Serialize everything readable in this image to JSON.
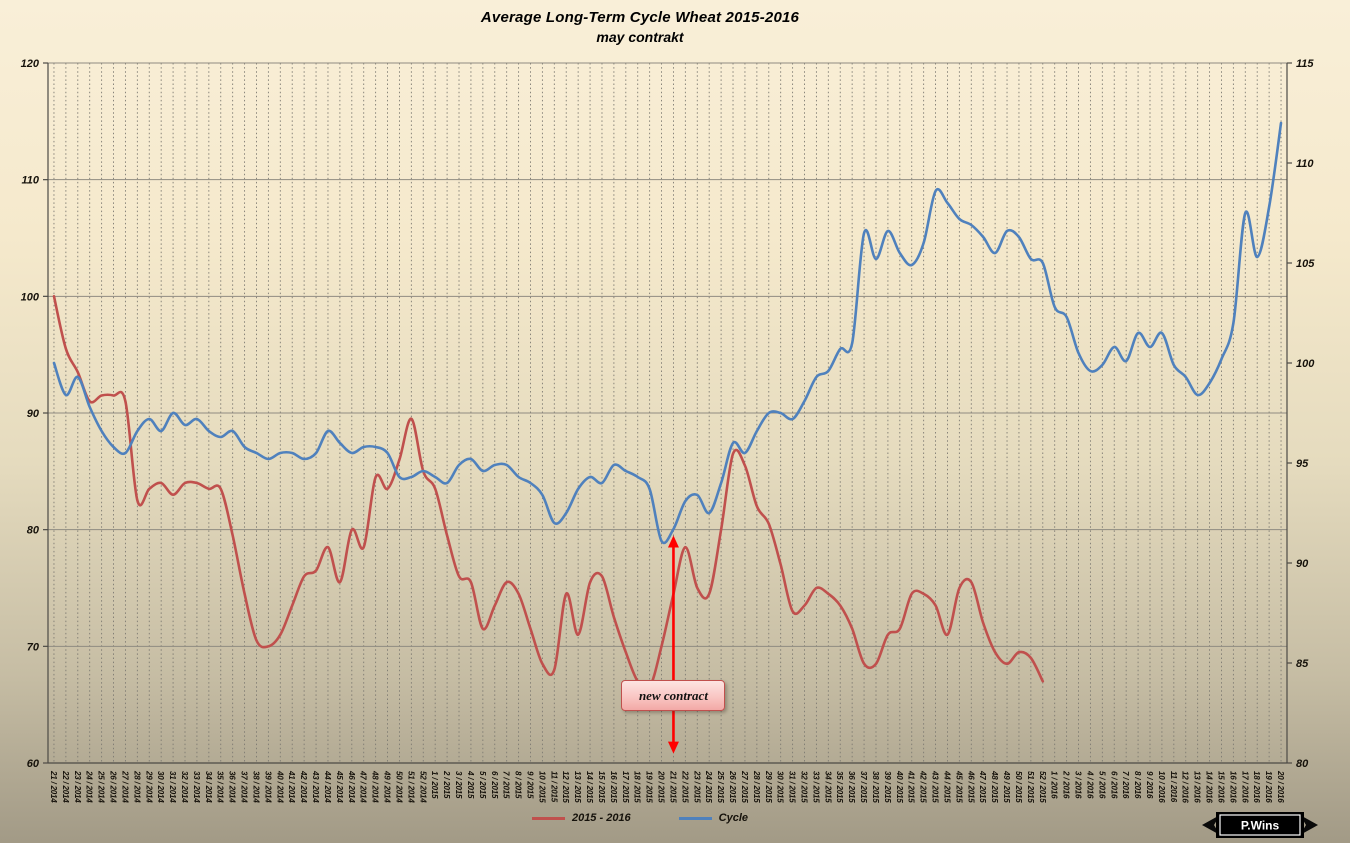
{
  "chart_data": {
    "type": "line",
    "title": "Average Long-Term Cycle Wheat 2015-2016",
    "subtitle": "may contrakt",
    "legend_position": "bottom-center",
    "grid": {
      "vertical": "dashed-per-category",
      "horizontal": "solid-per-left-tick"
    },
    "left_axis": {
      "min": 60,
      "max": 120,
      "ticks": [
        60,
        70,
        80,
        90,
        100,
        110,
        120
      ]
    },
    "right_axis": {
      "min": 80,
      "max": 115,
      "ticks": [
        80,
        85,
        90,
        95,
        100,
        105,
        110,
        115
      ]
    },
    "categories": [
      "21 / 2014",
      "22 / 2014",
      "23 / 2014",
      "24 / 2014",
      "25 / 2014",
      "26 / 2014",
      "27 / 2014",
      "28 / 2014",
      "29 / 2014",
      "30 / 2014",
      "31 / 2014",
      "32 / 2014",
      "33 / 2014",
      "34 / 2014",
      "35 / 2014",
      "36 / 2014",
      "37 / 2014",
      "38 / 2014",
      "39 / 2014",
      "40 / 2014",
      "41 / 2014",
      "42 / 2014",
      "43 / 2014",
      "44 / 2014",
      "45 / 2014",
      "46 / 2014",
      "47 / 2014",
      "48 / 2014",
      "49 / 2014",
      "50 / 2014",
      "51 / 2014",
      "52 / 2014",
      "1 / 2015",
      "2 / 2015",
      "3 / 2015",
      "4 / 2015",
      "5 / 2015",
      "6 / 2015",
      "7 / 2015",
      "8 / 2015",
      "9 / 2015",
      "10 / 2015",
      "11 / 2015",
      "12 / 2015",
      "13 / 2015",
      "14 / 2015",
      "15 / 2015",
      "16 / 2015",
      "17 / 2015",
      "18 / 2015",
      "19 / 2015",
      "20 / 2015",
      "21 / 2015",
      "22 / 2015",
      "23 / 2015",
      "24 / 2015",
      "25 / 2015",
      "26 / 2015",
      "27 / 2015",
      "28 / 2015",
      "29 / 2015",
      "30 / 2015",
      "31 / 2015",
      "32 / 2015",
      "33 / 2015",
      "34 / 2015",
      "35 / 2015",
      "36 / 2015",
      "37 / 2015",
      "38 / 2015",
      "39 / 2015",
      "40 / 2015",
      "41 / 2015",
      "42 / 2015",
      "43 / 2015",
      "44 / 2015",
      "45 / 2015",
      "46 / 2015",
      "47 / 2015",
      "48 / 2015",
      "49 / 2015",
      "50 / 2015",
      "51 / 2015",
      "52 / 2015",
      "1 / 2016",
      "2 / 2016",
      "3 / 2016",
      "4 / 2016",
      "5 / 2016",
      "6 / 2016",
      "7 / 2016",
      "8 / 2016",
      "9 / 2016",
      "10 / 2016",
      "11 / 2016",
      "12 / 2016",
      "13 / 2016",
      "14 / 2016",
      "15 / 2016",
      "16 / 2016",
      "17 / 2016",
      "18 / 2016",
      "19 / 2016",
      "20 / 2016"
    ],
    "series": [
      {
        "name": "2015 - 2016",
        "axis": "left",
        "color": "#C0504D",
        "values": [
          100,
          95.5,
          93.5,
          91,
          91.5,
          91.5,
          91,
          82.5,
          83.5,
          84,
          83,
          84,
          84,
          83.5,
          83.5,
          79.5,
          74.5,
          70.5,
          70,
          71,
          73.5,
          76,
          76.5,
          78.5,
          75.5,
          80,
          78.5,
          84.5,
          83.5,
          86,
          89.5,
          85,
          83.5,
          79.5,
          76,
          75.5,
          71.5,
          73.5,
          75.5,
          74.5,
          71.5,
          68.5,
          68,
          74.5,
          71,
          75.5,
          76,
          72.5,
          69.5,
          67,
          66.5,
          70,
          74.5,
          78.5,
          75,
          74.5,
          80,
          86.5,
          85.5,
          82,
          80.5,
          77,
          73,
          73.5,
          75,
          74.5,
          73.5,
          71.5,
          68.5,
          68.5,
          71,
          71.5,
          74.5,
          74.5,
          73.5,
          71,
          75,
          75.5,
          72,
          69.5,
          68.5,
          69.5,
          69,
          67
        ]
      },
      {
        "name": "Cycle",
        "axis": "right",
        "color": "#4F81BD",
        "values": [
          100,
          98.4,
          99.3,
          97.8,
          96.6,
          95.8,
          95.5,
          96.6,
          97.2,
          96.6,
          97.5,
          96.9,
          97.2,
          96.6,
          96.3,
          96.6,
          95.8,
          95.5,
          95.2,
          95.5,
          95.5,
          95.2,
          95.5,
          96.6,
          96,
          95.5,
          95.8,
          95.8,
          95.5,
          94.3,
          94.3,
          94.6,
          94.3,
          94,
          94.9,
          95.2,
          94.6,
          94.9,
          94.9,
          94.3,
          94,
          93.4,
          92,
          92.5,
          93.7,
          94.3,
          94,
          94.9,
          94.6,
          94.3,
          93.7,
          91.1,
          91.7,
          93.1,
          93.4,
          92.5,
          94,
          96,
          95.5,
          96.6,
          97.5,
          97.5,
          97.2,
          98.1,
          99.3,
          99.6,
          100.7,
          101,
          106.5,
          105.2,
          106.6,
          105.5,
          104.9,
          106,
          108.6,
          108,
          107.2,
          106.9,
          106.3,
          105.5,
          106.6,
          106.3,
          105.2,
          105,
          102.8,
          102.3,
          100.5,
          99.6,
          99.9,
          100.8,
          100.1,
          101.5,
          100.8,
          101.5,
          99.9,
          99.3,
          98.4,
          99,
          100.2,
          102,
          107.5,
          105.3,
          107.8,
          112
        ]
      }
    ],
    "annotations": [
      {
        "text": "new contract",
        "category": "21 / 2015",
        "category_index": 52,
        "axis": "left",
        "arrow_top_value": 79.5,
        "arrow_bottom_value": 60.8,
        "color": "#FF0000"
      }
    ]
  },
  "logo": {
    "text": "P.Wins"
  },
  "colors": {
    "background_top": "#f9efd8",
    "background_bottom": "#a29a86",
    "annotation_fill_top": "#fde4e2",
    "annotation_fill_bottom": "#f2a9a6",
    "annotation_border": "#c0504d",
    "arrow": "#FF0000",
    "series_red": "#C0504D",
    "series_blue": "#4F81BD"
  }
}
